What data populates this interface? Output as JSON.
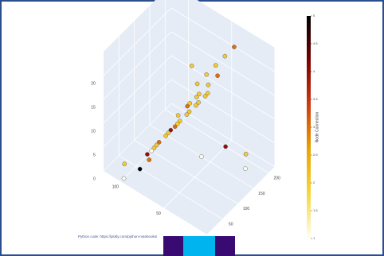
{
  "chart_data": {
    "type": "scatter3d",
    "x": [
      40,
      40,
      40,
      40,
      40,
      50,
      45,
      45,
      45,
      45,
      55,
      55,
      55,
      60,
      60,
      60,
      60,
      60,
      70,
      70,
      70,
      70,
      70,
      70,
      80,
      80,
      80,
      80,
      85,
      85,
      90,
      100,
      110,
      60,
      50,
      30,
      100,
      20
    ],
    "y": [
      80,
      110,
      140,
      170,
      200,
      90,
      70,
      100,
      130,
      160,
      60,
      90,
      120,
      50,
      80,
      110,
      140,
      170,
      40,
      70,
      100,
      130,
      160,
      190,
      30,
      60,
      90,
      120,
      20,
      50,
      80,
      10,
      40,
      150,
      200,
      210,
      100,
      180
    ],
    "z": [
      22,
      22,
      22,
      22,
      22,
      24,
      18,
      18,
      18,
      18,
      15,
      15,
      15,
      12,
      12,
      12,
      12,
      12,
      9,
      9,
      9,
      9,
      9,
      9,
      6,
      6,
      6,
      6,
      3,
      3,
      3,
      0,
      0,
      0,
      0,
      0,
      0,
      0
    ],
    "values": [
      2,
      2,
      2,
      2,
      3,
      2,
      2,
      2,
      2,
      3,
      2,
      3,
      2,
      4,
      2,
      2,
      2,
      2,
      3,
      2,
      2,
      2,
      2,
      2,
      4,
      2,
      2,
      3,
      5,
      3,
      2,
      1,
      2,
      1,
      4,
      2,
      1,
      1
    ],
    "xlim": [
      0,
      120
    ],
    "xticks": [
      0,
      50,
      100
    ],
    "ylim": [
      0,
      220
    ],
    "yticks": [
      50,
      100,
      150,
      200
    ],
    "zlim": [
      0,
      25
    ],
    "zticks": [
      0,
      5,
      10,
      15,
      20
    ],
    "colorbar_title": "Node Connection",
    "clim": [
      1,
      5
    ],
    "cticks": [
      1,
      1.5,
      2,
      2.5,
      3,
      3.5,
      4,
      4.5,
      5
    ],
    "colorscale": [
      "#fffff0",
      "#f7d640",
      "#eaa400",
      "#d03a10",
      "#7a0000",
      "#000000"
    ],
    "annotation": "Python code: https://plotly.com/python-notebooks/"
  }
}
